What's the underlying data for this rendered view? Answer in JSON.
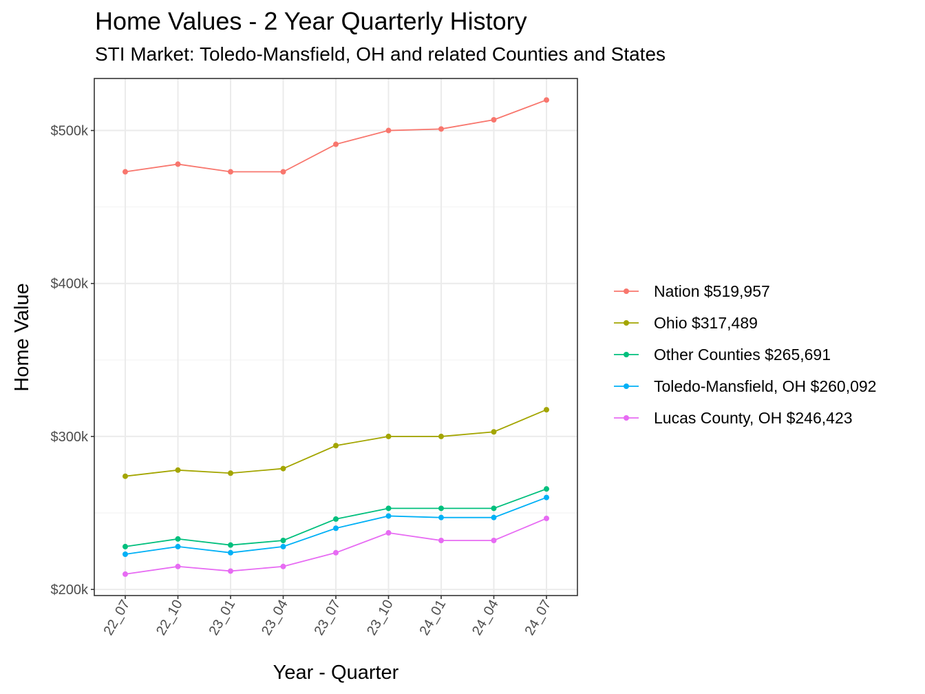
{
  "chart_data": {
    "type": "line",
    "title": "Home Values - 2 Year Quarterly History",
    "subtitle": "STI Market: Toledo-Mansfield, OH and related Counties and States",
    "xlabel": "Year - Quarter",
    "ylabel": "Home Value",
    "categories": [
      "22_07",
      "22_10",
      "23_01",
      "23_04",
      "23_07",
      "23_10",
      "24_01",
      "24_04",
      "24_07"
    ],
    "ylim": [
      196000,
      534000
    ],
    "yticks": [
      200000,
      300000,
      400000,
      500000
    ],
    "ytick_labels": [
      "$200k",
      "$300k",
      "$400k",
      "$500k"
    ],
    "grid": true,
    "legend_position": "right",
    "series": [
      {
        "name": "Nation $519,957",
        "color": "#F8766D",
        "values": [
          473000,
          478000,
          473000,
          473000,
          491000,
          500000,
          501000,
          507000,
          519957
        ]
      },
      {
        "name": "Ohio $317,489",
        "color": "#A3A500",
        "values": [
          274000,
          278000,
          276000,
          279000,
          294000,
          300000,
          300000,
          303000,
          317489
        ]
      },
      {
        "name": "Other Counties $265,691",
        "color": "#00BF7D",
        "values": [
          228000,
          233000,
          229000,
          232000,
          246000,
          253000,
          253000,
          253000,
          265691
        ]
      },
      {
        "name": "Toledo-Mansfield, OH $260,092",
        "color": "#00B0F6",
        "values": [
          223000,
          228000,
          224000,
          228000,
          240000,
          248000,
          247000,
          247000,
          260092
        ]
      },
      {
        "name": "Lucas County, OH $246,423",
        "color": "#E76BF3",
        "values": [
          210000,
          215000,
          212000,
          215000,
          224000,
          237000,
          232000,
          232000,
          246423
        ]
      }
    ]
  }
}
